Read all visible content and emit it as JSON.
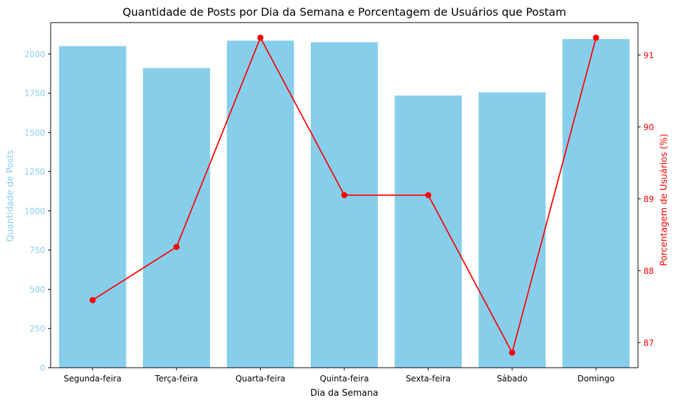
{
  "chart_data": {
    "type": "bar+line",
    "title": "Quantidade de Posts por Dia da Semana e Porcentagem de Usuários que Postam",
    "xlabel": "Dia da Semana",
    "categories": [
      "Segunda-feira",
      "Terça-feira",
      "Quarta-feira",
      "Quinta-feira",
      "Sexta-feira",
      "Sábado",
      "Domingo"
    ],
    "left_axis": {
      "label": "Quantidade de Posts",
      "ylim": [
        0,
        2200
      ],
      "ticks": [
        0,
        250,
        500,
        750,
        1000,
        1250,
        1500,
        1750,
        2000
      ],
      "color": "#87ceeb"
    },
    "right_axis": {
      "label": "Porcentagem de Usuários (%)",
      "ylim": [
        86.65,
        91.45
      ],
      "ticks": [
        87,
        88,
        89,
        90,
        91
      ],
      "color": "#ff0000"
    },
    "series": [
      {
        "axis": "left",
        "kind": "bar",
        "color": "#87ceeb",
        "values": [
          2050,
          1910,
          2085,
          2075,
          1735,
          1755,
          2095
        ]
      },
      {
        "axis": "right",
        "kind": "line",
        "color": "#ff0000",
        "values": [
          87.59,
          88.33,
          91.24,
          89.05,
          89.05,
          86.86,
          91.24
        ]
      }
    ],
    "grid": false
  }
}
